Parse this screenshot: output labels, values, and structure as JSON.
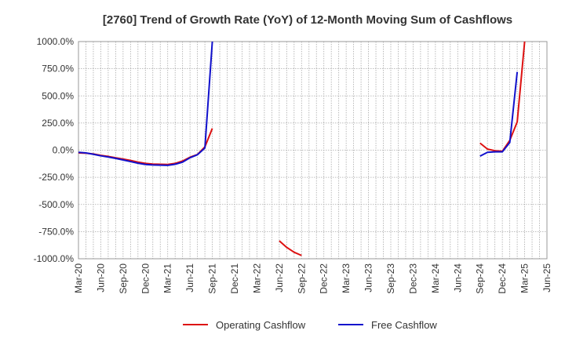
{
  "chart_data": {
    "type": "line",
    "title": "[2760]  Trend of Growth Rate (YoY) of 12-Month Moving Sum of Cashflows",
    "xlabel": "",
    "ylabel": "",
    "ylim": [
      -1000,
      1000
    ],
    "y_ticks": [
      1000,
      750,
      500,
      250,
      0,
      -250,
      -500,
      -750,
      -1000
    ],
    "y_tick_labels": [
      "1000.0%",
      "750.0%",
      "500.0%",
      "250.0%",
      "0.0%",
      "-250.0%",
      "-500.0%",
      "-750.0%",
      "-1000.0%"
    ],
    "x_tick_labels": [
      "Mar-20",
      "Jun-20",
      "Sep-20",
      "Dec-20",
      "Mar-21",
      "Jun-21",
      "Sep-21",
      "Dec-21",
      "Mar-22",
      "Jun-22",
      "Sep-22",
      "Dec-22",
      "Mar-23",
      "Jun-23",
      "Sep-23",
      "Dec-23",
      "Mar-24",
      "Jun-24",
      "Sep-24",
      "Dec-24",
      "Mar-25",
      "Jun-25"
    ],
    "x_range": [
      "2020-03",
      "2025-06"
    ],
    "grid": true,
    "legend_position": "bottom",
    "series": [
      {
        "name": "Operating Cashflow",
        "color": "#dd1111",
        "points": [
          [
            "2020-03",
            -25
          ],
          [
            "2020-04",
            -28
          ],
          [
            "2020-05",
            -35
          ],
          [
            "2020-06",
            -48
          ],
          [
            "2020-07",
            -58
          ],
          [
            "2020-08",
            -70
          ],
          [
            "2020-09",
            -82
          ],
          [
            "2020-10",
            -95
          ],
          [
            "2020-11",
            -110
          ],
          [
            "2020-12",
            -122
          ],
          [
            "2021-01",
            -128
          ],
          [
            "2021-02",
            -130
          ],
          [
            "2021-03",
            -132
          ],
          [
            "2021-04",
            -122
          ],
          [
            "2021-05",
            -100
          ],
          [
            "2021-06",
            -65
          ],
          [
            "2021-07",
            -40
          ],
          [
            "2021-08",
            30
          ],
          [
            "2021-09",
            200
          ],
          null,
          [
            "2022-06",
            -835
          ],
          [
            "2022-07",
            -895
          ],
          [
            "2022-08",
            -940
          ],
          [
            "2022-09",
            -970
          ],
          null,
          [
            "2024-09",
            65
          ],
          [
            "2024-10",
            10
          ],
          [
            "2024-11",
            -5
          ],
          [
            "2024-12",
            -10
          ],
          [
            "2025-01",
            90
          ],
          [
            "2025-02",
            260
          ],
          [
            "2025-03",
            1000
          ]
        ]
      },
      {
        "name": "Free Cashflow",
        "color": "#1111cc",
        "points": [
          [
            "2020-03",
            -20
          ],
          [
            "2020-04",
            -25
          ],
          [
            "2020-05",
            -38
          ],
          [
            "2020-06",
            -52
          ],
          [
            "2020-07",
            -63
          ],
          [
            "2020-08",
            -76
          ],
          [
            "2020-09",
            -90
          ],
          [
            "2020-10",
            -105
          ],
          [
            "2020-11",
            -120
          ],
          [
            "2020-12",
            -132
          ],
          [
            "2021-01",
            -136
          ],
          [
            "2021-02",
            -138
          ],
          [
            "2021-03",
            -140
          ],
          [
            "2021-04",
            -130
          ],
          [
            "2021-05",
            -110
          ],
          [
            "2021-06",
            -70
          ],
          [
            "2021-07",
            -42
          ],
          [
            "2021-08",
            20
          ],
          [
            "2021-09",
            1000
          ],
          null,
          [
            "2024-09",
            -55
          ],
          [
            "2024-10",
            -20
          ],
          [
            "2024-11",
            -15
          ],
          [
            "2024-12",
            -15
          ],
          [
            "2025-01",
            70
          ],
          [
            "2025-02",
            720
          ]
        ]
      }
    ]
  }
}
